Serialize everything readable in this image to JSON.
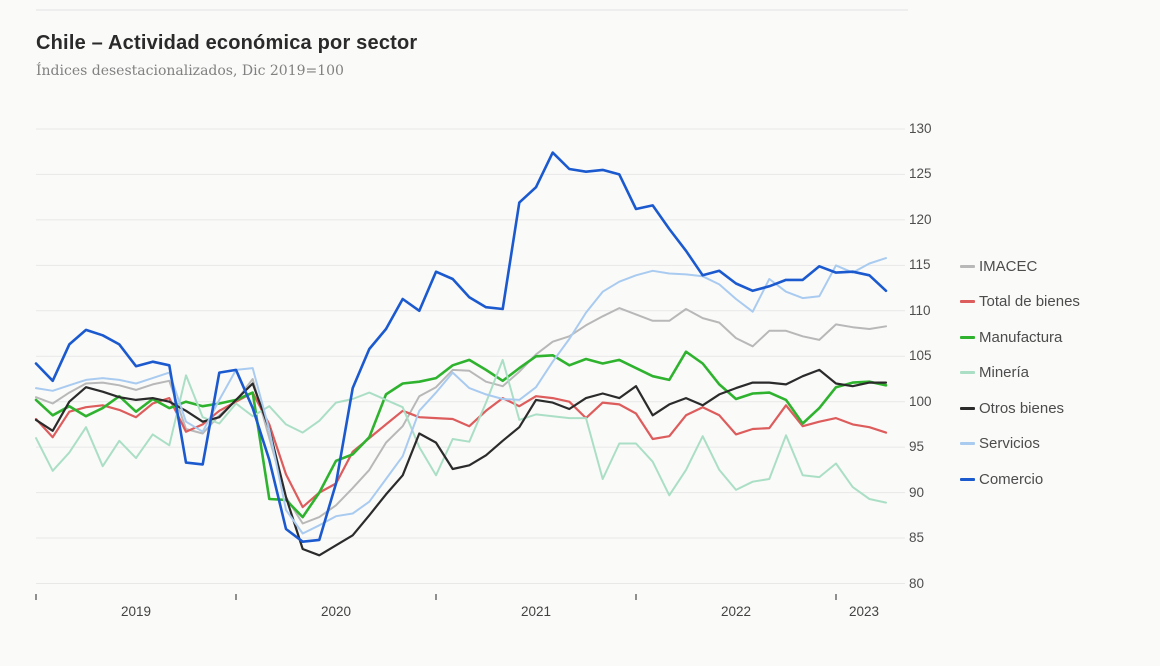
{
  "header": {
    "title": "Chile – Actividad económica por sector",
    "subtitle": "Índices desestacionalizados, Dic 2019=100"
  },
  "chart_data": {
    "type": "line",
    "title": "Chile – Actividad económica por sector",
    "subtitle": "Índices desestacionalizados, Dic 2019=100",
    "x_unit": "month",
    "x_start": "2019-01",
    "x_end": "2023-04",
    "x_tick_labels": [
      "2019",
      "2020",
      "2021",
      "2022",
      "2023"
    ],
    "ylim": [
      80,
      130
    ],
    "y_ticks": [
      80,
      85,
      90,
      95,
      100,
      105,
      110,
      115,
      120,
      125,
      130
    ],
    "grid": "horizontal",
    "legend_position": "right",
    "colors": {
      "background": "#fafaf9",
      "gridline": "#e8e8e7",
      "axis_text": "#4e4e4e"
    },
    "series": [
      {
        "name": "IMACEC",
        "color": "#b8b8b8",
        "width": 2,
        "values": [
          100.5,
          99.8,
          101.0,
          102.0,
          102.1,
          101.8,
          101.3,
          101.9,
          102.3,
          97.0,
          96.5,
          98.5,
          100.1,
          102.5,
          96.0,
          89.5,
          86.6,
          87.3,
          88.6,
          90.5,
          92.5,
          95.5,
          97.3,
          100.6,
          101.6,
          103.5,
          103.4,
          102.2,
          101.7,
          103.3,
          105.2,
          106.6,
          107.2,
          108.4,
          109.4,
          110.3,
          109.6,
          108.9,
          108.9,
          110.2,
          109.2,
          108.7,
          107.0,
          106.1,
          107.8,
          107.8,
          107.2,
          106.8,
          108.5,
          108.2,
          108.0,
          108.3
        ]
      },
      {
        "name": "Total de bienes",
        "color": "#dd5c5c",
        "width": 2.2,
        "values": [
          98.1,
          96.1,
          98.9,
          99.4,
          99.6,
          99.1,
          98.3,
          99.8,
          100.4,
          96.7,
          97.5,
          99.0,
          100.0,
          101.0,
          97.5,
          92.0,
          88.4,
          90.0,
          91.0,
          94.5,
          96.0,
          97.5,
          99.0,
          98.3,
          98.2,
          98.1,
          97.3,
          99.0,
          100.4,
          99.5,
          100.6,
          100.4,
          100.0,
          98.2,
          99.9,
          99.7,
          98.7,
          95.9,
          96.2,
          98.5,
          99.4,
          98.5,
          96.4,
          97.0,
          97.1,
          99.6,
          97.3,
          97.8,
          98.2,
          97.5,
          97.2,
          96.6
        ]
      },
      {
        "name": "Manufactura",
        "color": "#2fb32f",
        "width": 2.6,
        "values": [
          100.2,
          98.5,
          99.5,
          98.4,
          99.3,
          100.6,
          98.9,
          100.3,
          99.3,
          100.0,
          99.5,
          99.8,
          100.2,
          101.0,
          89.3,
          89.2,
          87.3,
          90.0,
          93.5,
          94.2,
          96.1,
          100.8,
          102.0,
          102.2,
          102.6,
          104.0,
          104.6,
          103.5,
          102.3,
          103.7,
          105.0,
          105.1,
          104.0,
          104.7,
          104.2,
          104.6,
          103.7,
          102.8,
          102.4,
          105.5,
          104.2,
          101.9,
          100.3,
          100.9,
          101.0,
          100.2,
          97.6,
          99.3,
          101.6,
          102.1,
          102.2,
          101.8
        ]
      },
      {
        "name": "Minería",
        "color": "#abdfc5",
        "width": 2,
        "values": [
          96.0,
          92.4,
          94.4,
          97.2,
          92.9,
          95.7,
          93.8,
          96.4,
          95.2,
          102.9,
          98.3,
          97.6,
          99.8,
          98.4,
          99.5,
          97.5,
          96.6,
          97.9,
          99.9,
          100.3,
          101.0,
          100.2,
          99.4,
          95.0,
          91.9,
          95.9,
          95.6,
          99.9,
          104.6,
          98.0,
          98.6,
          98.4,
          98.2,
          98.2,
          91.5,
          95.4,
          95.4,
          93.4,
          89.7,
          92.5,
          96.2,
          92.5,
          90.3,
          91.2,
          91.5,
          96.3,
          91.9,
          91.7,
          93.2,
          90.6,
          89.3,
          88.9
        ]
      },
      {
        "name": "Otros bienes",
        "color": "#2b2b2b",
        "width": 2.2,
        "values": [
          98.0,
          96.8,
          100.0,
          101.6,
          101.1,
          100.5,
          100.2,
          100.4,
          100.0,
          99.0,
          97.8,
          98.3,
          100.2,
          102.0,
          97.0,
          89.5,
          83.8,
          83.1,
          84.2,
          85.3,
          87.5,
          89.8,
          91.9,
          96.5,
          95.5,
          92.6,
          93.0,
          94.1,
          95.7,
          97.2,
          100.2,
          99.9,
          99.2,
          100.4,
          100.9,
          100.4,
          101.7,
          98.5,
          99.7,
          100.4,
          99.6,
          100.8,
          101.5,
          102.1,
          102.1,
          101.9,
          102.8,
          103.5,
          102.0,
          101.7,
          102.1,
          102.1
        ]
      },
      {
        "name": "Servicios",
        "color": "#a9cbf0",
        "width": 2,
        "values": [
          101.5,
          101.2,
          101.8,
          102.4,
          102.6,
          102.4,
          102.0,
          102.6,
          103.2,
          97.8,
          96.7,
          100.2,
          103.5,
          103.7,
          96.9,
          88.1,
          85.5,
          86.4,
          87.4,
          87.7,
          89.0,
          91.5,
          94.0,
          99.0,
          101.0,
          103.2,
          101.5,
          100.8,
          100.3,
          100.2,
          101.6,
          104.4,
          106.9,
          109.8,
          112.1,
          113.2,
          113.9,
          114.4,
          114.1,
          114.0,
          113.8,
          112.9,
          111.3,
          109.9,
          113.5,
          112.1,
          111.4,
          111.6,
          115.0,
          114.2,
          115.2,
          115.8
        ]
      },
      {
        "name": "Comercio",
        "color": "#1b59cf",
        "width": 2.6,
        "values": [
          104.2,
          102.3,
          106.3,
          107.9,
          107.3,
          106.3,
          103.9,
          104.4,
          104.0,
          93.3,
          93.1,
          103.2,
          103.5,
          99.3,
          93.6,
          86.0,
          84.6,
          84.8,
          91.0,
          101.5,
          105.8,
          108.0,
          111.3,
          110.0,
          114.3,
          113.5,
          111.5,
          110.4,
          110.2,
          121.9,
          123.6,
          127.4,
          125.6,
          125.3,
          125.5,
          125.0,
          121.2,
          121.6,
          119.0,
          116.6,
          113.9,
          114.4,
          113.0,
          112.2,
          112.7,
          113.4,
          113.4,
          114.9,
          114.2,
          114.3,
          113.9,
          112.2
        ]
      }
    ]
  }
}
